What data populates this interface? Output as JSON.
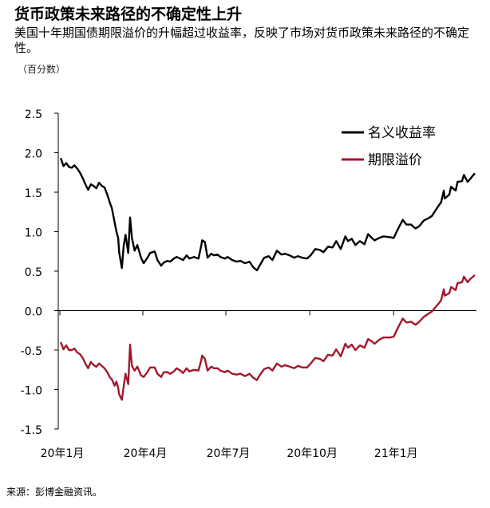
{
  "header": {
    "title": "货币政策未来路径的不确定性上升",
    "subtitle": "美国十年期国债期限溢价的升幅超过收益率，反映了市场对货币政策未来路径的不确定性。",
    "unit": "（百分数）"
  },
  "footer": {
    "source": "来源：彭博金融资讯。"
  },
  "colors": {
    "nominal": "#000000",
    "term_premium": "#a3182c",
    "axis": "#000000"
  },
  "chart_data": {
    "type": "line",
    "title": "货币政策未来路径的不确定性上升",
    "xlabel": "",
    "ylabel": "",
    "ylim": [
      -1.5,
      2.5
    ],
    "yticks": [
      2.5,
      2.0,
      1.5,
      1.0,
      0.5,
      0.0,
      -0.5,
      -1.0,
      -1.5
    ],
    "ytick_labels": [
      "2.5",
      "2.0",
      "1.5",
      "1.0",
      "0.5",
      "0.0",
      "-0.5",
      "-1.0",
      "-1.5"
    ],
    "xlim": [
      "2020-01-01",
      "2021-03-31"
    ],
    "xtick_labels": [
      "20年1月",
      "20年4月",
      "20年7月",
      "20年10月",
      "21年1月"
    ],
    "xtick_dates": [
      "2020-01-01",
      "2020-04-01",
      "2020-07-01",
      "2020-10-01",
      "2021-01-01"
    ],
    "legend_position": "top-right",
    "grid": false,
    "series": [
      {
        "name": "名义收益率",
        "points": [
          [
            "2020-01-02",
            1.93
          ],
          [
            "2020-01-05",
            1.83
          ],
          [
            "2020-01-08",
            1.87
          ],
          [
            "2020-01-11",
            1.82
          ],
          [
            "2020-01-14",
            1.81
          ],
          [
            "2020-01-17",
            1.84
          ],
          [
            "2020-01-20",
            1.8
          ],
          [
            "2020-01-23",
            1.75
          ],
          [
            "2020-01-26",
            1.68
          ],
          [
            "2020-01-29",
            1.6
          ],
          [
            "2020-02-01",
            1.53
          ],
          [
            "2020-02-04",
            1.6
          ],
          [
            "2020-02-07",
            1.58
          ],
          [
            "2020-02-10",
            1.55
          ],
          [
            "2020-02-13",
            1.62
          ],
          [
            "2020-02-16",
            1.58
          ],
          [
            "2020-02-19",
            1.56
          ],
          [
            "2020-02-22",
            1.47
          ],
          [
            "2020-02-25",
            1.36
          ],
          [
            "2020-02-27",
            1.3
          ],
          [
            "2020-03-01",
            1.12
          ],
          [
            "2020-03-03",
            1.0
          ],
          [
            "2020-03-05",
            0.92
          ],
          [
            "2020-03-06",
            0.74
          ],
          [
            "2020-03-09",
            0.54
          ],
          [
            "2020-03-11",
            0.82
          ],
          [
            "2020-03-13",
            0.96
          ],
          [
            "2020-03-16",
            0.73
          ],
          [
            "2020-03-18",
            1.18
          ],
          [
            "2020-03-20",
            0.92
          ],
          [
            "2020-03-23",
            0.76
          ],
          [
            "2020-03-26",
            0.83
          ],
          [
            "2020-03-30",
            0.67
          ],
          [
            "2020-04-02",
            0.6
          ],
          [
            "2020-04-06",
            0.67
          ],
          [
            "2020-04-09",
            0.73
          ],
          [
            "2020-04-14",
            0.75
          ],
          [
            "2020-04-17",
            0.64
          ],
          [
            "2020-04-21",
            0.57
          ],
          [
            "2020-04-24",
            0.61
          ],
          [
            "2020-04-28",
            0.63
          ],
          [
            "2020-05-01",
            0.62
          ],
          [
            "2020-05-05",
            0.66
          ],
          [
            "2020-05-08",
            0.68
          ],
          [
            "2020-05-12",
            0.66
          ],
          [
            "2020-05-15",
            0.64
          ],
          [
            "2020-05-19",
            0.7
          ],
          [
            "2020-05-22",
            0.66
          ],
          [
            "2020-05-27",
            0.68
          ],
          [
            "2020-06-01",
            0.66
          ],
          [
            "2020-06-04",
            0.82
          ],
          [
            "2020-06-05",
            0.89
          ],
          [
            "2020-06-08",
            0.87
          ],
          [
            "2020-06-11",
            0.67
          ],
          [
            "2020-06-15",
            0.72
          ],
          [
            "2020-06-18",
            0.7
          ],
          [
            "2020-06-22",
            0.71
          ],
          [
            "2020-06-25",
            0.68
          ],
          [
            "2020-06-30",
            0.66
          ],
          [
            "2020-07-03",
            0.68
          ],
          [
            "2020-07-08",
            0.64
          ],
          [
            "2020-07-13",
            0.62
          ],
          [
            "2020-07-17",
            0.63
          ],
          [
            "2020-07-22",
            0.6
          ],
          [
            "2020-07-27",
            0.62
          ],
          [
            "2020-07-31",
            0.55
          ],
          [
            "2020-08-04",
            0.51
          ],
          [
            "2020-08-07",
            0.57
          ],
          [
            "2020-08-12",
            0.67
          ],
          [
            "2020-08-17",
            0.69
          ],
          [
            "2020-08-21",
            0.64
          ],
          [
            "2020-08-26",
            0.76
          ],
          [
            "2020-08-31",
            0.71
          ],
          [
            "2020-09-04",
            0.72
          ],
          [
            "2020-09-09",
            0.7
          ],
          [
            "2020-09-14",
            0.67
          ],
          [
            "2020-09-18",
            0.69
          ],
          [
            "2020-09-23",
            0.67
          ],
          [
            "2020-09-28",
            0.66
          ],
          [
            "2020-10-02",
            0.7
          ],
          [
            "2020-10-07",
            0.78
          ],
          [
            "2020-10-12",
            0.77
          ],
          [
            "2020-10-16",
            0.74
          ],
          [
            "2020-10-21",
            0.81
          ],
          [
            "2020-10-26",
            0.8
          ],
          [
            "2020-10-30",
            0.88
          ],
          [
            "2020-11-04",
            0.78
          ],
          [
            "2020-11-09",
            0.94
          ],
          [
            "2020-11-12",
            0.88
          ],
          [
            "2020-11-16",
            0.91
          ],
          [
            "2020-11-20",
            0.83
          ],
          [
            "2020-11-25",
            0.88
          ],
          [
            "2020-11-30",
            0.84
          ],
          [
            "2020-12-04",
            0.97
          ],
          [
            "2020-12-08",
            0.92
          ],
          [
            "2020-12-11",
            0.89
          ],
          [
            "2020-12-16",
            0.92
          ],
          [
            "2020-12-21",
            0.94
          ],
          [
            "2020-12-28",
            0.93
          ],
          [
            "2021-01-01",
            0.92
          ],
          [
            "2021-01-06",
            1.04
          ],
          [
            "2021-01-11",
            1.15
          ],
          [
            "2021-01-15",
            1.09
          ],
          [
            "2021-01-20",
            1.09
          ],
          [
            "2021-01-25",
            1.04
          ],
          [
            "2021-01-29",
            1.07
          ],
          [
            "2021-02-03",
            1.14
          ],
          [
            "2021-02-08",
            1.17
          ],
          [
            "2021-02-12",
            1.2
          ],
          [
            "2021-02-17",
            1.29
          ],
          [
            "2021-02-20",
            1.34
          ],
          [
            "2021-02-22",
            1.37
          ],
          [
            "2021-02-25",
            1.52
          ],
          [
            "2021-02-26",
            1.42
          ],
          [
            "2021-03-03",
            1.47
          ],
          [
            "2021-03-05",
            1.57
          ],
          [
            "2021-03-10",
            1.52
          ],
          [
            "2021-03-12",
            1.63
          ],
          [
            "2021-03-17",
            1.64
          ],
          [
            "2021-03-19",
            1.72
          ],
          [
            "2021-03-23",
            1.63
          ],
          [
            "2021-03-26",
            1.67
          ],
          [
            "2021-03-31",
            1.74
          ]
        ]
      },
      {
        "name": "期限溢价",
        "points": [
          [
            "2020-01-02",
            -0.4
          ],
          [
            "2020-01-05",
            -0.49
          ],
          [
            "2020-01-08",
            -0.44
          ],
          [
            "2020-01-11",
            -0.5
          ],
          [
            "2020-01-14",
            -0.5
          ],
          [
            "2020-01-17",
            -0.48
          ],
          [
            "2020-01-20",
            -0.53
          ],
          [
            "2020-01-23",
            -0.55
          ],
          [
            "2020-01-26",
            -0.6
          ],
          [
            "2020-01-29",
            -0.67
          ],
          [
            "2020-02-01",
            -0.73
          ],
          [
            "2020-02-04",
            -0.65
          ],
          [
            "2020-02-07",
            -0.69
          ],
          [
            "2020-02-10",
            -0.71
          ],
          [
            "2020-02-13",
            -0.67
          ],
          [
            "2020-02-16",
            -0.7
          ],
          [
            "2020-02-19",
            -0.73
          ],
          [
            "2020-02-22",
            -0.78
          ],
          [
            "2020-02-25",
            -0.85
          ],
          [
            "2020-02-27",
            -0.87
          ],
          [
            "2020-03-01",
            -0.95
          ],
          [
            "2020-03-03",
            -0.9
          ],
          [
            "2020-03-05",
            -0.98
          ],
          [
            "2020-03-06",
            -1.06
          ],
          [
            "2020-03-09",
            -1.13
          ],
          [
            "2020-03-11",
            -0.96
          ],
          [
            "2020-03-13",
            -0.8
          ],
          [
            "2020-03-16",
            -0.93
          ],
          [
            "2020-03-18",
            -0.43
          ],
          [
            "2020-03-20",
            -0.7
          ],
          [
            "2020-03-23",
            -0.76
          ],
          [
            "2020-03-26",
            -0.71
          ],
          [
            "2020-03-30",
            -0.82
          ],
          [
            "2020-04-02",
            -0.84
          ],
          [
            "2020-04-06",
            -0.78
          ],
          [
            "2020-04-09",
            -0.72
          ],
          [
            "2020-04-14",
            -0.72
          ],
          [
            "2020-04-17",
            -0.8
          ],
          [
            "2020-04-21",
            -0.84
          ],
          [
            "2020-04-24",
            -0.78
          ],
          [
            "2020-04-28",
            -0.78
          ],
          [
            "2020-05-01",
            -0.8
          ],
          [
            "2020-05-05",
            -0.77
          ],
          [
            "2020-05-08",
            -0.73
          ],
          [
            "2020-05-12",
            -0.76
          ],
          [
            "2020-05-15",
            -0.79
          ],
          [
            "2020-05-19",
            -0.73
          ],
          [
            "2020-05-22",
            -0.77
          ],
          [
            "2020-05-27",
            -0.75
          ],
          [
            "2020-06-01",
            -0.76
          ],
          [
            "2020-06-04",
            -0.63
          ],
          [
            "2020-06-05",
            -0.57
          ],
          [
            "2020-06-08",
            -0.61
          ],
          [
            "2020-06-11",
            -0.76
          ],
          [
            "2020-06-15",
            -0.71
          ],
          [
            "2020-06-18",
            -0.73
          ],
          [
            "2020-06-22",
            -0.73
          ],
          [
            "2020-06-25",
            -0.76
          ],
          [
            "2020-06-30",
            -0.78
          ],
          [
            "2020-07-03",
            -0.76
          ],
          [
            "2020-07-08",
            -0.8
          ],
          [
            "2020-07-13",
            -0.81
          ],
          [
            "2020-07-17",
            -0.8
          ],
          [
            "2020-07-22",
            -0.83
          ],
          [
            "2020-07-27",
            -0.8
          ],
          [
            "2020-07-31",
            -0.85
          ],
          [
            "2020-08-04",
            -0.88
          ],
          [
            "2020-08-07",
            -0.82
          ],
          [
            "2020-08-12",
            -0.74
          ],
          [
            "2020-08-17",
            -0.72
          ],
          [
            "2020-08-21",
            -0.76
          ],
          [
            "2020-08-26",
            -0.67
          ],
          [
            "2020-08-31",
            -0.71
          ],
          [
            "2020-09-04",
            -0.69
          ],
          [
            "2020-09-09",
            -0.71
          ],
          [
            "2020-09-14",
            -0.73
          ],
          [
            "2020-09-18",
            -0.7
          ],
          [
            "2020-09-23",
            -0.72
          ],
          [
            "2020-09-28",
            -0.72
          ],
          [
            "2020-10-02",
            -0.67
          ],
          [
            "2020-10-07",
            -0.6
          ],
          [
            "2020-10-12",
            -0.61
          ],
          [
            "2020-10-16",
            -0.64
          ],
          [
            "2020-10-21",
            -0.56
          ],
          [
            "2020-10-26",
            -0.57
          ],
          [
            "2020-10-30",
            -0.49
          ],
          [
            "2020-11-04",
            -0.58
          ],
          [
            "2020-11-09",
            -0.42
          ],
          [
            "2020-11-12",
            -0.47
          ],
          [
            "2020-11-16",
            -0.43
          ],
          [
            "2020-11-20",
            -0.5
          ],
          [
            "2020-11-25",
            -0.44
          ],
          [
            "2020-11-30",
            -0.47
          ],
          [
            "2020-12-04",
            -0.36
          ],
          [
            "2020-12-08",
            -0.39
          ],
          [
            "2020-12-11",
            -0.42
          ],
          [
            "2020-12-16",
            -0.37
          ],
          [
            "2020-12-21",
            -0.34
          ],
          [
            "2020-12-28",
            -0.34
          ],
          [
            "2021-01-01",
            -0.33
          ],
          [
            "2021-01-06",
            -0.21
          ],
          [
            "2021-01-11",
            -0.1
          ],
          [
            "2021-01-15",
            -0.15
          ],
          [
            "2021-01-20",
            -0.14
          ],
          [
            "2021-01-25",
            -0.18
          ],
          [
            "2021-01-29",
            -0.14
          ],
          [
            "2021-02-03",
            -0.08
          ],
          [
            "2021-02-08",
            -0.04
          ],
          [
            "2021-02-12",
            -0.01
          ],
          [
            "2021-02-17",
            0.06
          ],
          [
            "2021-02-20",
            0.1
          ],
          [
            "2021-02-22",
            0.13
          ],
          [
            "2021-02-25",
            0.27
          ],
          [
            "2021-02-26",
            0.19
          ],
          [
            "2021-03-03",
            0.22
          ],
          [
            "2021-03-05",
            0.3
          ],
          [
            "2021-03-10",
            0.26
          ],
          [
            "2021-03-12",
            0.35
          ],
          [
            "2021-03-17",
            0.36
          ],
          [
            "2021-03-19",
            0.43
          ],
          [
            "2021-03-23",
            0.36
          ],
          [
            "2021-03-26",
            0.4
          ],
          [
            "2021-03-31",
            0.45
          ]
        ]
      }
    ]
  }
}
